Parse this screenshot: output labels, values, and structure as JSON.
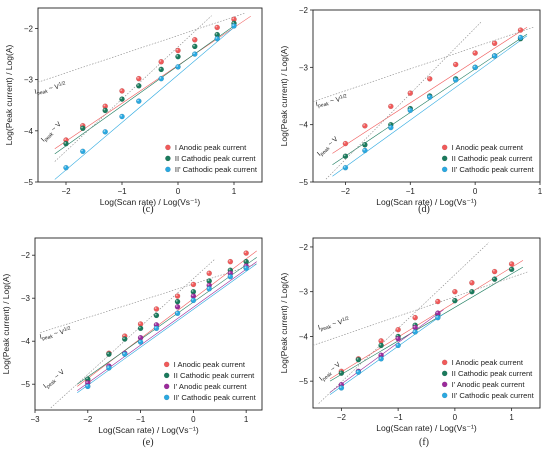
{
  "chart_data": [
    {
      "panel": "(c)",
      "type": "scatter",
      "xlabel": "Log(Scan rate) / Log(Vs⁻¹)",
      "ylabel": "Log(Peak current) / Log(A)",
      "xlim": [
        -2.5,
        1.5
      ],
      "ylim": [
        -5,
        -1.6
      ],
      "xticks": [
        -2,
        -1,
        0,
        1
      ],
      "yticks": [
        -5,
        -4,
        -3,
        -2
      ],
      "legend_position": "bottom-right",
      "series": [
        {
          "name": "I  Anodic peak current",
          "color": "#f05a5a",
          "x": [
            -2.0,
            -1.7,
            -1.3,
            -1.0,
            -0.7,
            -0.3,
            0.0,
            0.3,
            0.7,
            1.0
          ],
          "y": [
            -4.18,
            -3.9,
            -3.52,
            -3.22,
            -2.98,
            -2.65,
            -2.43,
            -2.22,
            -1.98,
            -1.82
          ]
        },
        {
          "name": "II  Cathodic peak current",
          "color": "#1a7a5c",
          "x": [
            -2.0,
            -1.7,
            -1.3,
            -1.0,
            -0.7,
            -0.3,
            0.0,
            0.3,
            0.7,
            1.0
          ],
          "y": [
            -4.25,
            -3.95,
            -3.6,
            -3.38,
            -3.12,
            -2.8,
            -2.55,
            -2.35,
            -2.12,
            -1.9
          ]
        },
        {
          "name": "II' Cathodic peak current",
          "color": "#2aa8e0",
          "x": [
            -2.0,
            -1.7,
            -1.3,
            -1.0,
            -0.7,
            -0.3,
            0.0,
            0.3,
            0.7,
            1.0
          ],
          "y": [
            -4.72,
            -4.4,
            -4.02,
            -3.72,
            -3.42,
            -2.98,
            -2.75,
            -2.5,
            -2.2,
            -1.95
          ]
        }
      ],
      "fit_lines": [
        {
          "x": [
            -2.2,
            1.3
          ],
          "y": [
            -4.35,
            -1.76
          ],
          "color": "#f05a5a"
        },
        {
          "x": [
            -2.2,
            1.0
          ],
          "y": [
            -4.45,
            -1.95
          ],
          "color": "#1a7a5c"
        },
        {
          "x": [
            -2.2,
            1.0
          ],
          "y": [
            -4.95,
            -1.98
          ],
          "color": "#2aa8e0"
        },
        {
          "x": [
            -2.5,
            1.2
          ],
          "y": [
            -3.05,
            -1.7
          ],
          "color": "#888888",
          "dash": "1.5,1.5"
        },
        {
          "x": [
            -2.2,
            0.6
          ],
          "y": [
            -4.6,
            -1.75
          ],
          "color": "#888888",
          "dash": "1.5,1.5"
        }
      ],
      "annotations": [
        {
          "base": "I",
          "sub": "peak",
          "rest": " ~ V",
          "sup": "1/2",
          "x": -2.55,
          "y": -3.28,
          "angle": -13
        },
        {
          "base": "I",
          "sub": "peak",
          "rest": " ~ V",
          "sup": "",
          "x": -2.4,
          "y": -4.22,
          "angle": -45
        }
      ]
    },
    {
      "panel": "(d)",
      "type": "scatter",
      "xlabel": "Log(Scan rate) / Log(Vs⁻¹)",
      "ylabel": "Log(Peak current) / Log(A)",
      "xlim": [
        -2.5,
        1.0
      ],
      "ylim": [
        -5,
        -2
      ],
      "xticks": [
        -2,
        -1,
        0,
        1
      ],
      "yticks": [
        -5,
        -4,
        -3,
        -2
      ],
      "legend_position": "bottom-right",
      "series": [
        {
          "name": "I  Anodic peak current",
          "color": "#f05a5a",
          "x": [
            -2.0,
            -1.7,
            -1.3,
            -1.0,
            -0.7,
            -0.3,
            0.0,
            0.3,
            0.7
          ],
          "y": [
            -4.33,
            -4.02,
            -3.68,
            -3.45,
            -3.2,
            -2.95,
            -2.75,
            -2.58,
            -2.35
          ]
        },
        {
          "name": "II  Cathodic peak current",
          "color": "#1a7a5c",
          "x": [
            -2.0,
            -1.7,
            -1.3,
            -1.0,
            -0.7,
            -0.3,
            0.0,
            0.3,
            0.7
          ],
          "y": [
            -4.55,
            -4.35,
            -4.0,
            -3.72,
            -3.5,
            -3.2,
            -3.0,
            -2.8,
            -2.5
          ]
        },
        {
          "name": "II' Cathodic peak current",
          "color": "#2aa8e0",
          "x": [
            -2.0,
            -1.7,
            -1.3,
            -1.0,
            -0.7,
            -0.3,
            0.0,
            0.3,
            0.7
          ],
          "y": [
            -4.75,
            -4.45,
            -4.05,
            -3.75,
            -3.52,
            -3.22,
            -3.0,
            -2.8,
            -2.48
          ]
        }
      ],
      "fit_lines": [
        {
          "x": [
            -2.2,
            0.8
          ],
          "y": [
            -4.5,
            -2.3
          ],
          "color": "#f05a5a"
        },
        {
          "x": [
            -2.2,
            0.8
          ],
          "y": [
            -4.7,
            -2.42
          ],
          "color": "#1a7a5c"
        },
        {
          "x": [
            -2.2,
            0.8
          ],
          "y": [
            -4.9,
            -2.45
          ],
          "color": "#2aa8e0"
        },
        {
          "x": [
            -2.5,
            0.9
          ],
          "y": [
            -3.6,
            -2.3
          ],
          "color": "#888888",
          "dash": "1.5,1.5"
        },
        {
          "x": [
            -2.3,
            0.1
          ],
          "y": [
            -4.95,
            -2.2
          ],
          "color": "#888888",
          "dash": "1.5,1.5"
        }
      ],
      "annotations": [
        {
          "base": "I",
          "sub": "peak",
          "rest": " ~ V",
          "sup": "1/2",
          "x": -2.45,
          "y": -3.68,
          "angle": -12
        },
        {
          "base": "I",
          "sub": "peak",
          "rest": " ~ V",
          "sup": "",
          "x": -2.4,
          "y": -4.55,
          "angle": -42
        }
      ]
    },
    {
      "panel": "(e)",
      "type": "scatter",
      "xlabel": "Log(Scan rate) / Log(Vs⁻¹)",
      "ylabel": "Log(Peak current) / Log(A)",
      "xlim": [
        -3.0,
        1.3
      ],
      "ylim": [
        -5.6,
        -1.6
      ],
      "xticks": [
        -3,
        -2,
        -1,
        0,
        1
      ],
      "yticks": [
        -5,
        -4,
        -3,
        -2
      ],
      "legend_position": "bottom-right",
      "series": [
        {
          "name": "I Anodic peak current",
          "color": "#f05a5a",
          "x": [
            -2.0,
            -1.6,
            -1.3,
            -1.0,
            -0.7,
            -0.3,
            0.0,
            0.3,
            0.7,
            1.0
          ],
          "y": [
            -4.92,
            -4.28,
            -3.88,
            -3.6,
            -3.25,
            -2.95,
            -2.68,
            -2.42,
            -2.15,
            -1.95
          ]
        },
        {
          "name": "II Cathodic peak current",
          "color": "#1a7a5c",
          "x": [
            -2.0,
            -1.6,
            -1.3,
            -1.0,
            -0.7,
            -0.3,
            0.0,
            0.3,
            0.7,
            1.0
          ],
          "y": [
            -4.88,
            -4.3,
            -3.95,
            -3.7,
            -3.4,
            -3.08,
            -2.85,
            -2.6,
            -2.35,
            -2.15
          ]
        },
        {
          "name": "I' Anodic peak current",
          "color": "#9b2b9b",
          "x": [
            -2.0,
            -1.6,
            -1.3,
            -1.0,
            -0.7,
            -0.3,
            0.0,
            0.3,
            0.7,
            1.0
          ],
          "y": [
            -4.97,
            -4.58,
            -4.28,
            -3.92,
            -3.62,
            -3.2,
            -2.95,
            -2.7,
            -2.42,
            -2.25
          ]
        },
        {
          "name": "II' Cathodic peak current",
          "color": "#2aa8e0",
          "x": [
            -2.0,
            -1.6,
            -1.3,
            -1.0,
            -0.7,
            -0.3,
            0.0,
            0.3,
            0.7,
            1.0
          ],
          "y": [
            -5.05,
            -4.62,
            -4.3,
            -4.02,
            -3.7,
            -3.35,
            -3.05,
            -2.78,
            -2.5,
            -2.3
          ]
        }
      ],
      "fit_lines": [
        {
          "x": [
            -2.2,
            1.2
          ],
          "y": [
            -5.05,
            -1.9
          ],
          "color": "#f05a5a"
        },
        {
          "x": [
            -2.2,
            1.2
          ],
          "y": [
            -5.0,
            -2.05
          ],
          "color": "#1a7a5c"
        },
        {
          "x": [
            -2.2,
            1.2
          ],
          "y": [
            -5.15,
            -2.15
          ],
          "color": "#9b2b9b"
        },
        {
          "x": [
            -2.2,
            1.2
          ],
          "y": [
            -5.2,
            -2.2
          ],
          "color": "#2aa8e0"
        },
        {
          "x": [
            -2.9,
            1.2
          ],
          "y": [
            -3.8,
            -2.2
          ],
          "color": "#888888",
          "dash": "1.5,1.5"
        },
        {
          "x": [
            -2.7,
            0.4
          ],
          "y": [
            -5.55,
            -2.1
          ],
          "color": "#888888",
          "dash": "1.5,1.5"
        }
      ],
      "annotations": [
        {
          "base": "I",
          "sub": "peak",
          "rest": " ~ V",
          "sup": "1/2",
          "x": -2.9,
          "y": -3.95,
          "angle": -13
        },
        {
          "base": "I",
          "sub": "peak",
          "rest": " ~ V",
          "sup": "",
          "x": -2.8,
          "y": -5.1,
          "angle": -40
        }
      ]
    },
    {
      "panel": "(f)",
      "type": "scatter",
      "xlabel": "Log(Scan rate) / Log(Vs⁻¹)",
      "ylabel": "Log(Peak current) / Log(A)",
      "xlim": [
        -2.5,
        1.5
      ],
      "ylim": [
        -5.6,
        -1.8
      ],
      "xticks": [
        -2,
        -1,
        0,
        1
      ],
      "yticks": [
        -5,
        -4,
        -3,
        -2
      ],
      "legend_position": "bottom-right",
      "series": [
        {
          "name": "I Anodic peak current",
          "color": "#f05a5a",
          "x": [
            -2.0,
            -1.7,
            -1.3,
            -1.0,
            -0.7,
            -0.3,
            0.0,
            0.3,
            0.7,
            1.0
          ],
          "y": [
            -4.78,
            -4.5,
            -4.1,
            -3.85,
            -3.58,
            -3.22,
            -3.0,
            -2.8,
            -2.55,
            -2.38
          ]
        },
        {
          "name": "II Cathodic peak current",
          "color": "#1a7a5c",
          "x": [
            -2.0,
            -1.7,
            -1.3,
            -1.0,
            -0.7,
            -0.3,
            0.0,
            0.3,
            0.7,
            1.0
          ],
          "y": [
            -4.82,
            -4.52,
            -4.2,
            -4.0,
            -3.75,
            -3.5,
            -3.2,
            -3.0,
            -2.72,
            -2.5
          ]
        },
        {
          "name": "I' Anodic peak current",
          "color": "#9b2b9b",
          "x": [
            -2.0,
            -1.7,
            -1.3,
            -1.0,
            -0.7,
            -0.3
          ],
          "y": [
            -5.08,
            -4.78,
            -4.42,
            -4.05,
            -3.8,
            -3.48
          ]
        },
        {
          "name": "II' Cathodic peak current",
          "color": "#2aa8e0",
          "x": [
            -2.0,
            -1.7,
            -1.3,
            -1.0,
            -0.7,
            -0.3
          ],
          "y": [
            -5.15,
            -4.8,
            -4.5,
            -4.2,
            -3.9,
            -3.58
          ]
        }
      ],
      "fit_lines": [
        {
          "x": [
            -2.2,
            1.2
          ],
          "y": [
            -4.95,
            -2.3
          ],
          "color": "#f05a5a"
        },
        {
          "x": [
            -2.2,
            1.2
          ],
          "y": [
            -5.0,
            -2.45
          ],
          "color": "#1a7a5c"
        },
        {
          "x": [
            -2.2,
            -0.2
          ],
          "y": [
            -5.25,
            -3.4
          ],
          "color": "#9b2b9b"
        },
        {
          "x": [
            -2.2,
            -0.2
          ],
          "y": [
            -5.3,
            -3.5
          ],
          "color": "#2aa8e0"
        },
        {
          "x": [
            -2.5,
            1.3
          ],
          "y": [
            -4.2,
            -2.55
          ],
          "color": "#888888",
          "dash": "1.5,1.5"
        },
        {
          "x": [
            -2.4,
            0.6
          ],
          "y": [
            -5.5,
            -1.9
          ],
          "color": "#888888",
          "dash": "1.5,1.5"
        }
      ],
      "annotations": [
        {
          "base": "I",
          "sub": "peak",
          "rest": " ~ V",
          "sup": "1/2",
          "x": -2.4,
          "y": -3.85,
          "angle": -14
        },
        {
          "base": "I",
          "sub": "peak",
          "rest": " ~ V",
          "sup": "",
          "x": -2.35,
          "y": -5.0,
          "angle": -40
        }
      ]
    }
  ]
}
